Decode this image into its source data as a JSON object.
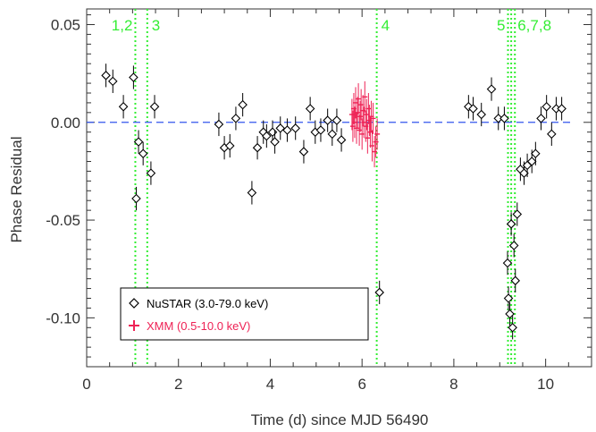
{
  "chart_data": {
    "type": "scatter",
    "xlabel": "Time (d) since MJD 56490",
    "ylabel": "Phase Residual",
    "xlim": [
      0,
      11.0
    ],
    "ylim": [
      -0.125,
      0.058
    ],
    "x_ticks": [
      0,
      2,
      4,
      6,
      8,
      10
    ],
    "x_tick_labels": [
      "0",
      "2",
      "4",
      "6",
      "8",
      "10"
    ],
    "y_ticks": [
      0.05,
      0.0,
      -0.05,
      -0.1
    ],
    "y_tick_labels": [
      "0.05",
      "0.00",
      "-0.05",
      "-0.10"
    ],
    "reference_line": {
      "y": 0.0,
      "style": "dashed",
      "color": "#3355ee"
    },
    "grid": false,
    "events": [
      {
        "label": "1,2",
        "x": [
          1.06
        ]
      },
      {
        "label": "3",
        "x": [
          1.32
        ]
      },
      {
        "label": "4",
        "x": [
          6.32
        ]
      },
      {
        "label": "5",
        "x": [
          9.18
        ]
      },
      {
        "label": "6,7,8",
        "x": [
          9.25,
          9.33
        ]
      }
    ],
    "event_color": "#33ee33",
    "legend": {
      "position": "bottom-left",
      "entries": [
        {
          "label": "NuSTAR (3.0-79.0 keV)",
          "marker": "diamond",
          "color": "#000000"
        },
        {
          "label": "XMM (0.5-10.0 keV)",
          "marker": "plus",
          "color": "#ee2255"
        }
      ]
    },
    "series": [
      {
        "name": "NuSTAR (3.0-79.0 keV)",
        "marker": "diamond",
        "color": "#000000",
        "x": [
          0.42,
          0.57,
          0.8,
          1.02,
          1.08,
          1.13,
          1.23,
          1.4,
          1.48,
          2.88,
          3.0,
          3.12,
          3.25,
          3.4,
          3.6,
          3.72,
          3.85,
          3.92,
          4.05,
          4.1,
          4.22,
          4.37,
          4.55,
          4.73,
          4.87,
          4.98,
          5.1,
          5.25,
          5.35,
          5.45,
          5.55,
          6.38,
          8.32,
          8.42,
          8.6,
          8.82,
          8.97,
          9.1,
          9.17,
          9.19,
          9.22,
          9.25,
          9.28,
          9.31,
          9.34,
          9.38,
          9.45,
          9.53,
          9.6,
          9.7,
          9.78,
          9.9,
          10.02,
          10.13,
          10.23,
          10.35
        ],
        "y": [
          0.024,
          0.021,
          0.008,
          0.023,
          -0.039,
          -0.01,
          -0.016,
          -0.026,
          0.008,
          -0.001,
          -0.013,
          -0.012,
          0.002,
          0.009,
          -0.036,
          -0.013,
          -0.005,
          -0.007,
          -0.005,
          -0.01,
          -0.003,
          -0.004,
          -0.003,
          -0.015,
          0.007,
          -0.005,
          -0.004,
          0.001,
          -0.006,
          0.001,
          -0.009,
          -0.087,
          0.008,
          0.007,
          0.004,
          0.017,
          0.002,
          0.002,
          -0.072,
          -0.09,
          -0.098,
          -0.052,
          -0.105,
          -0.063,
          -0.081,
          -0.047,
          -0.024,
          -0.026,
          -0.022,
          -0.02,
          -0.016,
          0.002,
          0.008,
          -0.006,
          0.007,
          0.007
        ],
        "yerr": [
          0.006,
          0.006,
          0.006,
          0.006,
          0.006,
          0.006,
          0.006,
          0.006,
          0.006,
          0.006,
          0.006,
          0.006,
          0.006,
          0.006,
          0.006,
          0.006,
          0.006,
          0.006,
          0.006,
          0.006,
          0.006,
          0.006,
          0.006,
          0.006,
          0.006,
          0.006,
          0.006,
          0.006,
          0.006,
          0.006,
          0.006,
          0.006,
          0.006,
          0.006,
          0.006,
          0.006,
          0.006,
          0.006,
          0.006,
          0.006,
          0.006,
          0.006,
          0.006,
          0.006,
          0.006,
          0.006,
          0.006,
          0.006,
          0.006,
          0.006,
          0.006,
          0.006,
          0.006,
          0.006,
          0.006,
          0.006
        ],
        "xerr": 0.05
      },
      {
        "name": "XMM (0.5-10.0 keV)",
        "marker": "plus",
        "color": "#ee2255",
        "x": [
          5.78,
          5.8,
          5.82,
          5.84,
          5.86,
          5.88,
          5.9,
          5.92,
          5.94,
          5.96,
          5.98,
          6.0,
          6.02,
          6.04,
          6.06,
          6.08,
          6.1,
          6.12,
          6.14,
          6.16,
          6.18,
          6.2,
          6.22,
          6.24,
          6.27,
          6.3,
          6.33
        ],
        "y": [
          0.004,
          -0.002,
          0.007,
          0.0,
          0.01,
          -0.003,
          0.005,
          0.012,
          -0.004,
          0.003,
          0.009,
          -0.006,
          0.006,
          0.0,
          0.013,
          -0.002,
          0.004,
          -0.008,
          0.007,
          0.001,
          -0.005,
          0.003,
          -0.012,
          0.002,
          -0.015,
          -0.01,
          -0.006
        ],
        "yerr": 0.008,
        "xerr": 0.012
      }
    ]
  }
}
